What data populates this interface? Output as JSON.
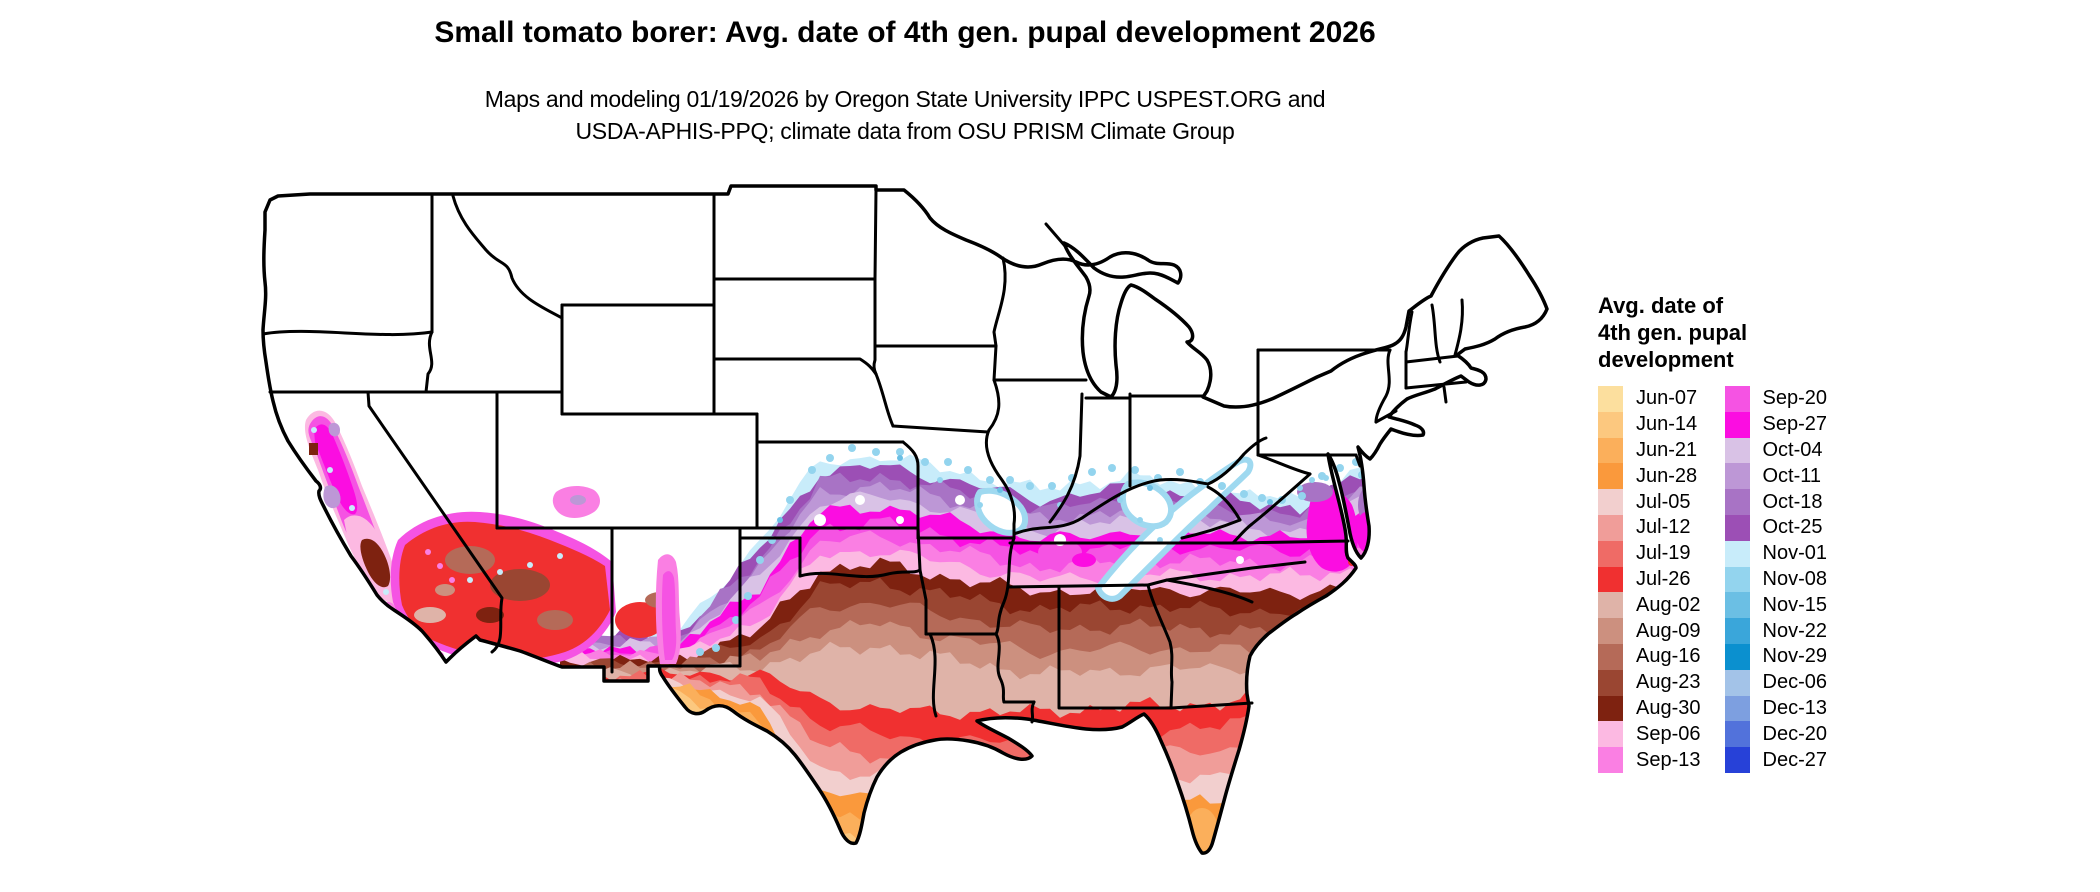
{
  "title": "Small tomato borer: Avg. date of 4th gen. pupal development 2026",
  "subtitle_line1": "Maps and modeling 01/19/2026 by Oregon State University IPPC USPEST.ORG and",
  "subtitle_line2": "USDA-APHIS-PPQ; climate data from OSU PRISM Climate Group",
  "legend": {
    "title_lines": [
      "Avg. date of",
      "4th gen. pupal",
      "development"
    ],
    "columns": [
      [
        {
          "label": "Jun-07",
          "color": "#FCDF9E"
        },
        {
          "label": "Jun-14",
          "color": "#FCC87F"
        },
        {
          "label": "Jun-21",
          "color": "#FBAF5B"
        },
        {
          "label": "Jun-28",
          "color": "#FA993C"
        },
        {
          "label": "Jul-05",
          "color": "#F2CFCE"
        },
        {
          "label": "Jul-12",
          "color": "#F09D99"
        },
        {
          "label": "Jul-19",
          "color": "#EF6B66"
        },
        {
          "label": "Jul-26",
          "color": "#F03030"
        },
        {
          "label": "Aug-02",
          "color": "#DFB3A8"
        },
        {
          "label": "Aug-09",
          "color": "#CC907F"
        },
        {
          "label": "Aug-16",
          "color": "#B56A58"
        },
        {
          "label": "Aug-23",
          "color": "#9A4632"
        },
        {
          "label": "Aug-30",
          "color": "#7E2210"
        },
        {
          "label": "Sep-06",
          "color": "#FCB9E2"
        },
        {
          "label": "Sep-13",
          "color": "#FA7FE3"
        }
      ],
      [
        {
          "label": "Sep-20",
          "color": "#F553E3"
        },
        {
          "label": "Sep-27",
          "color": "#FB0DE1"
        },
        {
          "label": "Oct-04",
          "color": "#D9C2E6"
        },
        {
          "label": "Oct-11",
          "color": "#BD97D6"
        },
        {
          "label": "Oct-18",
          "color": "#A873C5"
        },
        {
          "label": "Oct-25",
          "color": "#9C4FB5"
        },
        {
          "label": "Nov-01",
          "color": "#C8ECFA"
        },
        {
          "label": "Nov-08",
          "color": "#93D4EE"
        },
        {
          "label": "Nov-15",
          "color": "#6BBFE4"
        },
        {
          "label": "Nov-22",
          "color": "#3AA6DA"
        },
        {
          "label": "Nov-29",
          "color": "#0B90CF"
        },
        {
          "label": "Dec-06",
          "color": "#A3C3E8"
        },
        {
          "label": "Dec-13",
          "color": "#7D9FE0"
        },
        {
          "label": "Dec-20",
          "color": "#5272DB"
        },
        {
          "label": "Dec-27",
          "color": "#2741D8"
        }
      ]
    ]
  }
}
